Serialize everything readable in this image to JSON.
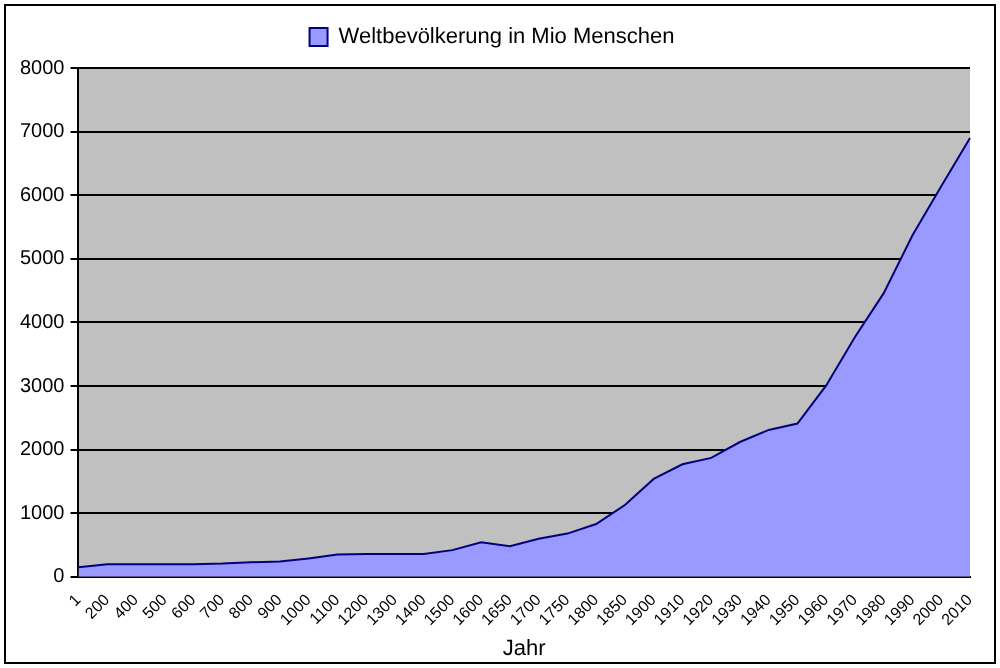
{
  "chart_data": {
    "type": "area",
    "xlabel": "Jahr",
    "categories": [
      "1",
      "200",
      "400",
      "500",
      "600",
      "700",
      "800",
      "900",
      "1000",
      "1100",
      "1200",
      "1300",
      "1400",
      "1500",
      "1600",
      "1650",
      "1700",
      "1750",
      "1800",
      "1850",
      "1900",
      "1910",
      "1920",
      "1930",
      "1940",
      "1950",
      "1960",
      "1970",
      "1980",
      "1990",
      "2000",
      "2010"
    ],
    "series": [
      {
        "name": "Weltbevölkerung in Mio Menschen",
        "color": "#9999ff",
        "values": [
          150,
          200,
          200,
          200,
          200,
          210,
          230,
          240,
          290,
          350,
          360,
          360,
          360,
          420,
          545,
          480,
          600,
          680,
          830,
          1130,
          1540,
          1770,
          1870,
          2120,
          2310,
          2410,
          3010,
          3770,
          4460,
          5370,
          6140,
          6900
        ]
      }
    ],
    "ylim": [
      0,
      8000
    ],
    "yticks": [
      0,
      1000,
      2000,
      3000,
      4000,
      5000,
      6000,
      7000,
      8000
    ],
    "grid": "y",
    "legend": "top"
  }
}
